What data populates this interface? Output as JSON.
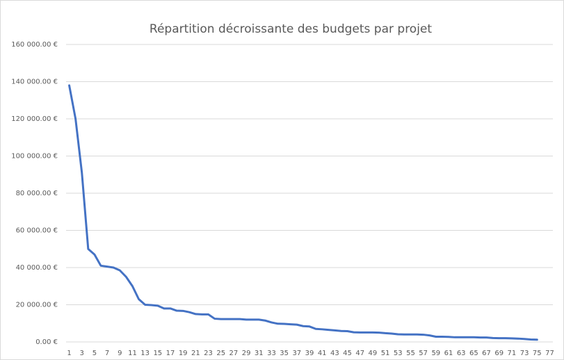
{
  "chart_data": {
    "type": "line",
    "title": "Répartition décroissante des budgets par projet",
    "categories": [
      1,
      null,
      3,
      null,
      5,
      null,
      7,
      null,
      9,
      null,
      11,
      null,
      13,
      null,
      15,
      null,
      17,
      null,
      19,
      null,
      21,
      null,
      23,
      null,
      25,
      null,
      27,
      null,
      29,
      null,
      31,
      null,
      33,
      null,
      35,
      null,
      37,
      null,
      39,
      null,
      41,
      null,
      43,
      null,
      45,
      null,
      47,
      null,
      49,
      null,
      51,
      null,
      53,
      null,
      55,
      null,
      57,
      null,
      59,
      null,
      61,
      null,
      63,
      null,
      65,
      null,
      67,
      null,
      69,
      null,
      71,
      null,
      73,
      null,
      75,
      null,
      77
    ],
    "values": [
      138000,
      120000,
      91000,
      50000,
      47000,
      41000,
      40500,
      40000,
      38500,
      35000,
      30000,
      23000,
      20000,
      19800,
      19500,
      18000,
      18000,
      16800,
      16700,
      16000,
      15000,
      14800,
      14800,
      12500,
      12300,
      12300,
      12300,
      12300,
      12000,
      12000,
      12000,
      11500,
      10500,
      9800,
      9700,
      9500,
      9300,
      8500,
      8300,
      7000,
      6800,
      6500,
      6200,
      5900,
      5800,
      5200,
      5100,
      5100,
      5100,
      5000,
      4700,
      4500,
      4100,
      4000,
      4000,
      4000,
      3900,
      3500,
      2800,
      2800,
      2700,
      2500,
      2500,
      2500,
      2500,
      2400,
      2400,
      2100,
      2000,
      2000,
      1900,
      1800,
      1600,
      1300,
      1200,
      null,
      null
    ],
    "color": "#4472c4",
    "ylim": [
      0,
      160000
    ],
    "yticks": [
      {
        "value": 0,
        "label": "0.00 €"
      },
      {
        "value": 20000,
        "label": "20 000.00 €"
      },
      {
        "value": 40000,
        "label": "40 000.00 €"
      },
      {
        "value": 60000,
        "label": "60 000.00 €"
      },
      {
        "value": 80000,
        "label": "80 000.00 €"
      },
      {
        "value": 100000,
        "label": "100 000.00 €"
      },
      {
        "value": 120000,
        "label": "120 000.00 €"
      },
      {
        "value": 140000,
        "label": "140 000.00 €"
      },
      {
        "value": 160000,
        "label": "160 000.00 €"
      }
    ],
    "grid": true
  }
}
